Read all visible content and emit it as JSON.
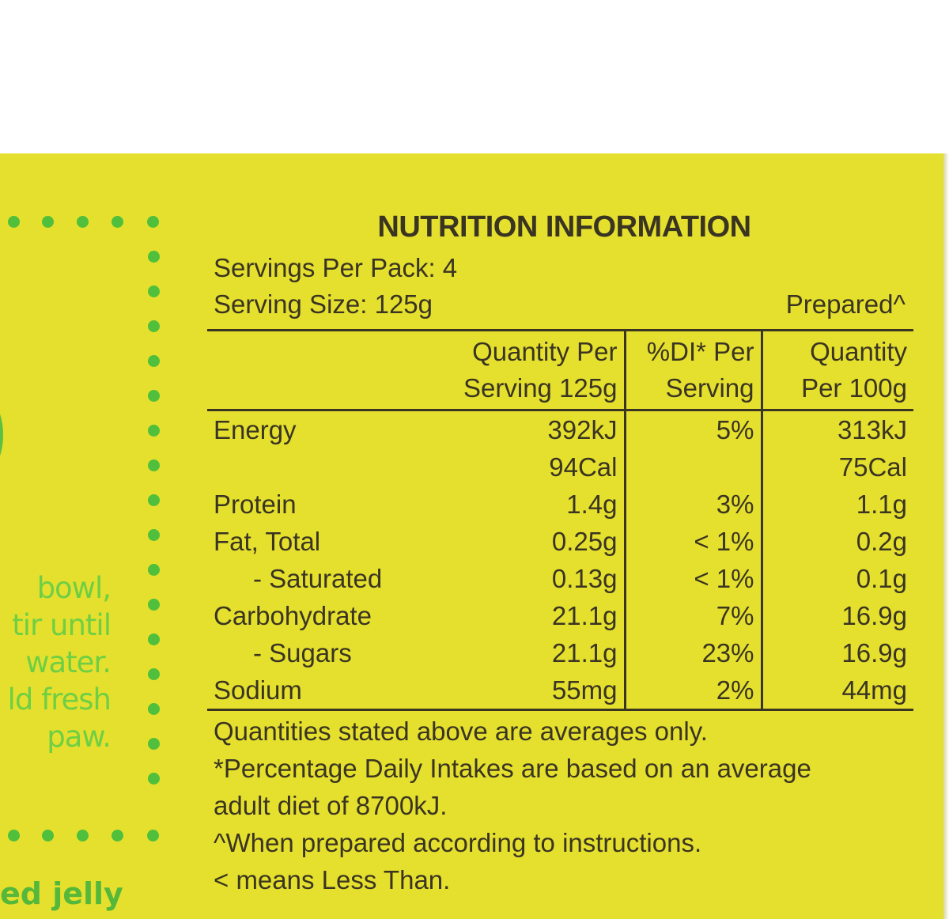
{
  "title": "NUTRITION INFORMATION",
  "servings_per_pack": "Servings Per Pack: 4",
  "serving_size": "Serving Size: 125g",
  "prepared_label": "Prepared^",
  "headers": {
    "col1": "",
    "col2_line1": "Quantity Per",
    "col2_line2": "Serving 125g",
    "col3_line1": "%DI* Per",
    "col3_line2": "Serving",
    "col4_line1": "Quantity",
    "col4_line2": "Per 100g"
  },
  "rows": [
    {
      "label": "Energy",
      "per_serving": "392kJ",
      "di": "5%",
      "per_100g": "313kJ"
    },
    {
      "label": "",
      "per_serving": "94Cal",
      "di": "",
      "per_100g": "75Cal"
    },
    {
      "label": "Protein",
      "per_serving": "1.4g",
      "di": "3%",
      "per_100g": "1.1g"
    },
    {
      "label": "Fat,  Total",
      "per_serving": "0.25g",
      "di": "< 1%",
      "per_100g": "0.2g"
    },
    {
      "label": "- Saturated",
      "per_serving": "0.13g",
      "di": "< 1%",
      "per_100g": "0.1g"
    },
    {
      "label": "Carbohydrate",
      "per_serving": "21.1g",
      "di": "7%",
      "per_100g": "16.9g"
    },
    {
      "label": "- Sugars",
      "per_serving": "21.1g",
      "di": "23%",
      "per_100g": "16.9g"
    },
    {
      "label": "Sodium",
      "per_serving": "55mg",
      "di": "2%",
      "per_100g": "44mg"
    }
  ],
  "footnotes": [
    "Quantities stated above are averages only.",
    "*Percentage Daily Intakes are based on an average",
    "adult diet of 8700kJ.",
    "^When prepared according to instructions.",
    "< means Less Than."
  ],
  "side_text": [
    "bowl,",
    "tir until",
    "water.",
    "ld fresh",
    "paw."
  ],
  "bottom_text": "ed jelly",
  "colors": {
    "panel": "#e5e02e",
    "text": "#3a3422",
    "dots": "#4fbf3c",
    "side_text": "#6fcf44"
  }
}
